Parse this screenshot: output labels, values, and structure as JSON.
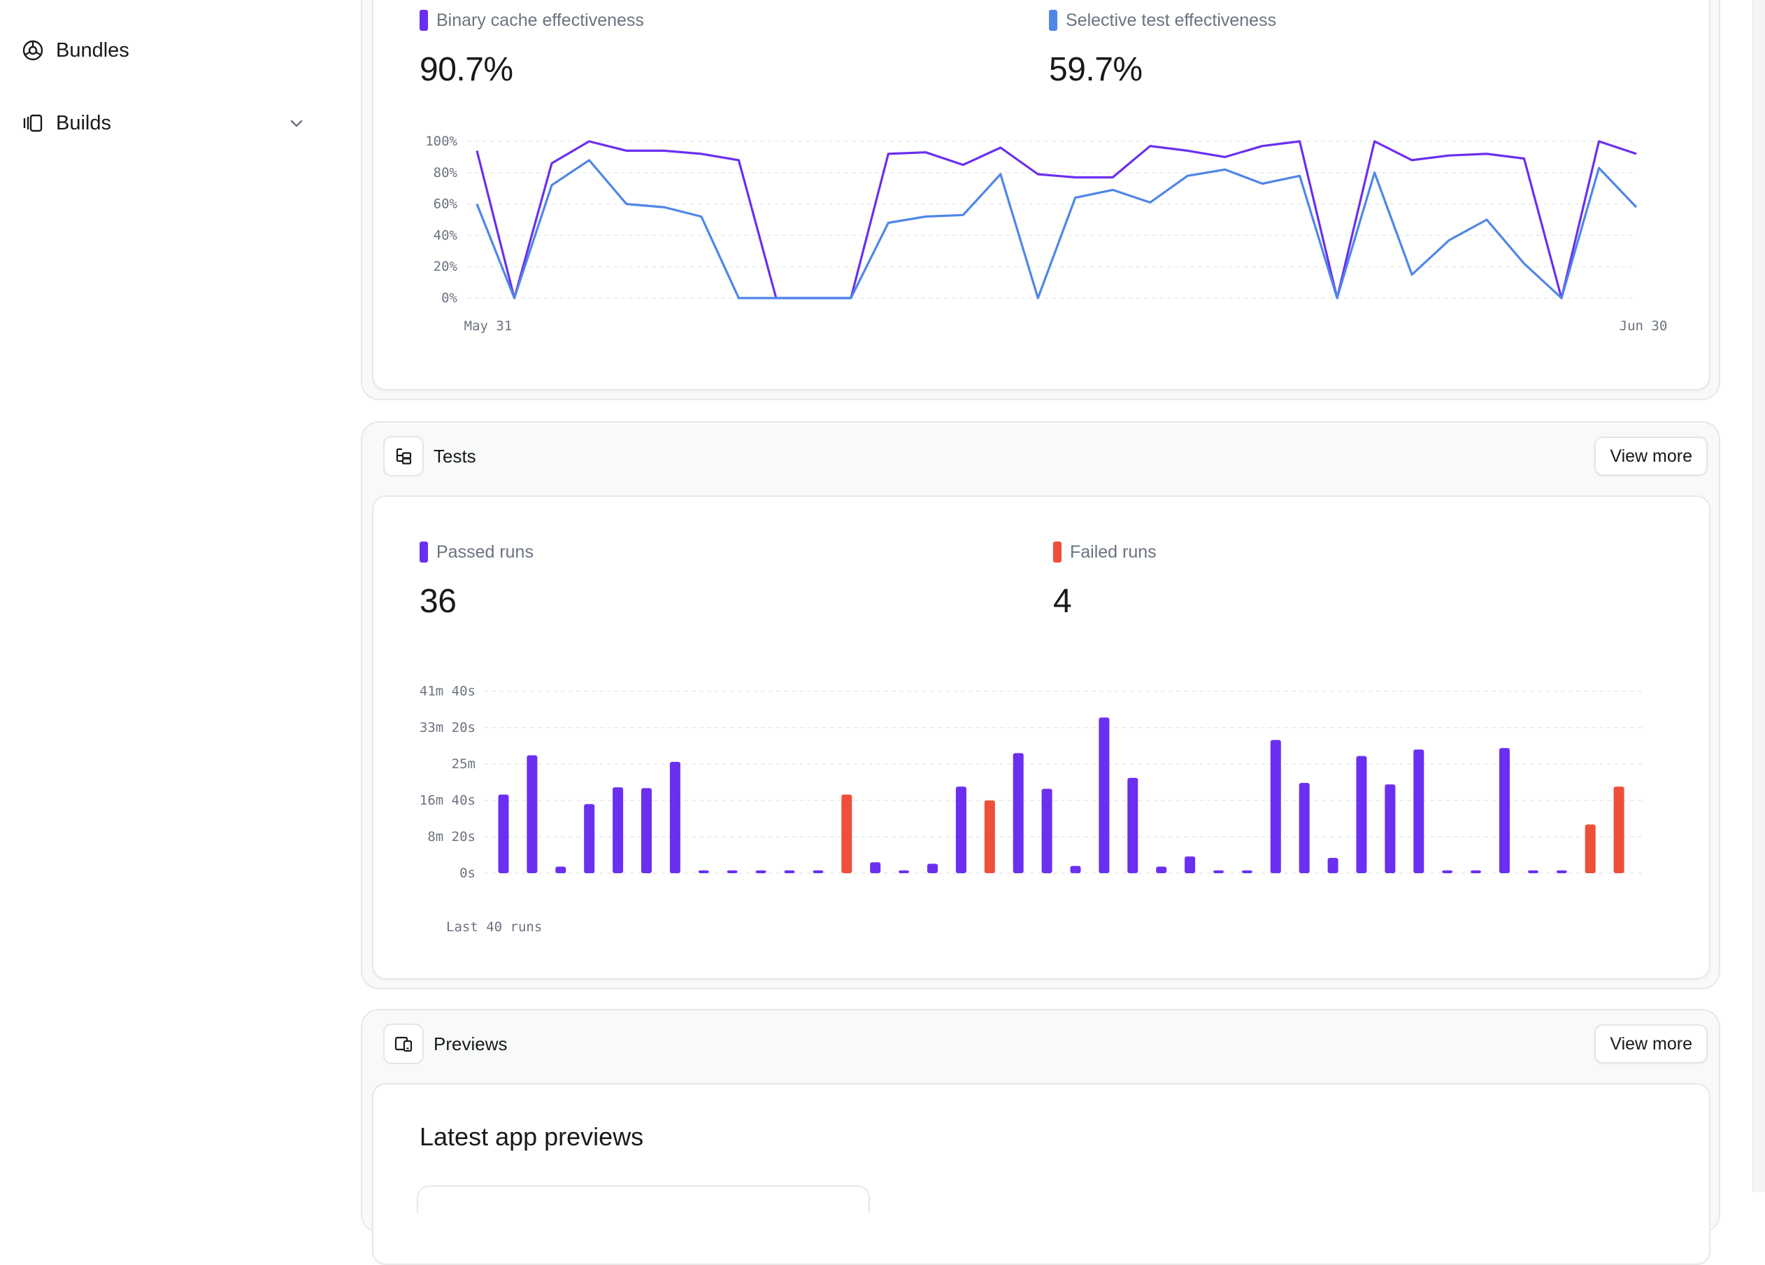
{
  "sidebar": {
    "items": [
      {
        "label": "Bundles",
        "icon": "bundles-icon"
      },
      {
        "label": "Builds",
        "icon": "builds-icon",
        "expandable": true
      }
    ]
  },
  "cache_card": {
    "legend": [
      {
        "label": "Binary cache effectiveness",
        "value": "90.7%",
        "color": "#6a2ff0"
      },
      {
        "label": "Selective test effectiveness",
        "value": "59.7%",
        "color": "#4f86e8"
      }
    ]
  },
  "tests_card": {
    "title": "Tests",
    "view_more": "View more",
    "legend": [
      {
        "label": "Passed runs",
        "value": "36",
        "color": "#6a2ff0"
      },
      {
        "label": "Failed runs",
        "value": "4",
        "color": "#ef4e39"
      }
    ],
    "footnote": "Last 40 runs"
  },
  "previews_card": {
    "title": "Previews",
    "view_more": "View more",
    "heading": "Latest app previews"
  },
  "chart_data": [
    {
      "type": "line",
      "x_labels": [
        "May 31",
        "Jun 30"
      ],
      "yticks": [
        "0%",
        "20%",
        "40%",
        "60%",
        "80%",
        "100%"
      ],
      "ylim": [
        0,
        100
      ],
      "grid": true,
      "series": [
        {
          "name": "Binary cache effectiveness",
          "color": "#6a2ff0",
          "values": [
            94,
            0,
            86,
            100,
            94,
            94,
            92,
            88,
            0,
            0,
            0,
            92,
            93,
            85,
            96,
            79,
            77,
            77,
            97,
            94,
            90,
            97,
            100,
            0,
            100,
            88,
            91,
            92,
            89,
            0,
            100,
            92
          ]
        },
        {
          "name": "Selective test effectiveness",
          "color": "#4f86e8",
          "values": [
            60,
            0,
            72,
            88,
            60,
            58,
            52,
            0,
            0,
            0,
            0,
            48,
            52,
            53,
            79,
            0,
            64,
            69,
            61,
            78,
            82,
            73,
            78,
            0,
            80,
            15,
            37,
            50,
            22,
            0,
            83,
            58
          ]
        }
      ]
    },
    {
      "type": "bar",
      "title": "Last 40 runs",
      "yticks": [
        "0s",
        "8m 20s",
        "16m 40s",
        "25m",
        "33m 20s",
        "41m 40s"
      ],
      "ylim_seconds": [
        0,
        2500
      ],
      "grid": true,
      "runs": [
        {
          "seconds": 1080,
          "status": "passed"
        },
        {
          "seconds": 1620,
          "status": "passed"
        },
        {
          "seconds": 90,
          "status": "passed"
        },
        {
          "seconds": 950,
          "status": "passed"
        },
        {
          "seconds": 1180,
          "status": "passed"
        },
        {
          "seconds": 1170,
          "status": "passed"
        },
        {
          "seconds": 1530,
          "status": "passed"
        },
        {
          "seconds": 25,
          "status": "passed"
        },
        {
          "seconds": 30,
          "status": "passed"
        },
        {
          "seconds": 30,
          "status": "passed"
        },
        {
          "seconds": 25,
          "status": "passed"
        },
        {
          "seconds": 25,
          "status": "passed"
        },
        {
          "seconds": 1080,
          "status": "failed"
        },
        {
          "seconds": 150,
          "status": "passed"
        },
        {
          "seconds": 30,
          "status": "passed"
        },
        {
          "seconds": 130,
          "status": "passed"
        },
        {
          "seconds": 1190,
          "status": "passed"
        },
        {
          "seconds": 1000,
          "status": "failed"
        },
        {
          "seconds": 1650,
          "status": "passed"
        },
        {
          "seconds": 1160,
          "status": "passed"
        },
        {
          "seconds": 100,
          "status": "passed"
        },
        {
          "seconds": 2140,
          "status": "passed"
        },
        {
          "seconds": 1310,
          "status": "passed"
        },
        {
          "seconds": 90,
          "status": "passed"
        },
        {
          "seconds": 230,
          "status": "passed"
        },
        {
          "seconds": 25,
          "status": "passed"
        },
        {
          "seconds": 25,
          "status": "passed"
        },
        {
          "seconds": 1830,
          "status": "passed"
        },
        {
          "seconds": 1240,
          "status": "passed"
        },
        {
          "seconds": 210,
          "status": "passed"
        },
        {
          "seconds": 1610,
          "status": "passed"
        },
        {
          "seconds": 1220,
          "status": "passed"
        },
        {
          "seconds": 1700,
          "status": "passed"
        },
        {
          "seconds": 25,
          "status": "passed"
        },
        {
          "seconds": 25,
          "status": "passed"
        },
        {
          "seconds": 1720,
          "status": "passed"
        },
        {
          "seconds": 25,
          "status": "passed"
        },
        {
          "seconds": 25,
          "status": "passed"
        },
        {
          "seconds": 670,
          "status": "failed"
        },
        {
          "seconds": 1190,
          "status": "failed"
        }
      ]
    }
  ]
}
